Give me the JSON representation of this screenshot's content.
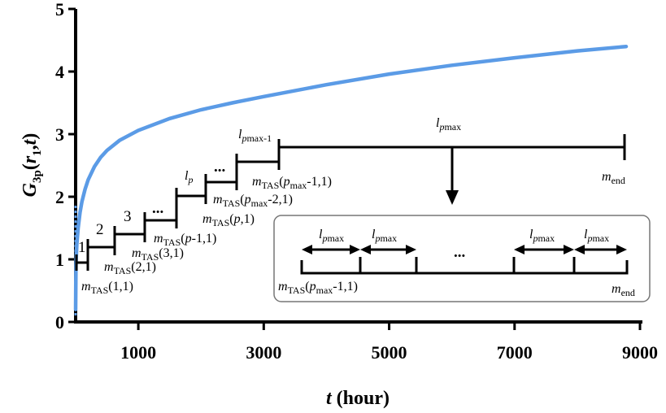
{
  "chart_data": {
    "type": "line",
    "title": "",
    "ylabel": {
      "main": "G",
      "sub1": "3p",
      "open": "(",
      "r": "r",
      "rsub": "1",
      "comma": ",",
      "t": "t",
      "close": ")"
    },
    "xlabel": {
      "var": "t",
      "unit": " (hour)"
    },
    "xlim": [
      0,
      9000
    ],
    "ylim": [
      0,
      5
    ],
    "x_ticks": [
      1000,
      3000,
      5000,
      7000,
      9000
    ],
    "x_tick_labels": [
      "1000",
      "3000",
      "5000",
      "7000",
      "9000"
    ],
    "y_ticks": [
      0,
      1,
      2,
      3,
      4,
      5
    ],
    "y_tick_labels": [
      "0",
      "1",
      "2",
      "3",
      "4",
      "5"
    ],
    "grid": false,
    "series": [
      {
        "color": "#5b9be6",
        "x": [
          0,
          5,
          10,
          20,
          40,
          70,
          100,
          150,
          200,
          300,
          400,
          500,
          700,
          1000,
          1500,
          2000,
          2500,
          3000,
          4000,
          5000,
          6000,
          7000,
          8000,
          8780
        ],
        "y": [
          0.2,
          0.9,
          1.05,
          1.25,
          1.5,
          1.75,
          1.92,
          2.12,
          2.27,
          2.48,
          2.63,
          2.74,
          2.9,
          3.06,
          3.25,
          3.39,
          3.5,
          3.6,
          3.79,
          3.96,
          4.1,
          4.22,
          4.33,
          4.4
        ]
      }
    ],
    "annotations": {
      "stage_labels": {
        "s1": "1",
        "s2": "2",
        "s3": "3",
        "dots": "...",
        "lp": "l",
        "lp_sub": "p",
        "lpmax1": "l",
        "lpmax1_sub": "p",
        "lpmax1_sub2": "max",
        "lpmax1_suffix": "-1",
        "lpmax": "l",
        "lpmax_sub": "p",
        "lpmax_sub2": "max"
      },
      "m_labels": {
        "m": "m",
        "tas": "TAS",
        "a11": "(1,1)",
        "a21": "(2,1)",
        "a31": "(3,1)",
        "ap1_pre": "(",
        "ap1_p": "p",
        "ap1_post": "-1,1)",
        "apc_pre": "(",
        "apc_p": "p",
        "apc_post": ",1)",
        "apm2_pre": "(",
        "apm2_p": "p",
        "apm2_max": "max",
        "apm2_post": "-2,1)",
        "apm1_pre": "(",
        "apm1_p": "p",
        "apm1_max": "max",
        "apm1_post": "-1,1)",
        "end": "end"
      },
      "inset": {
        "dots": "...",
        "l": "l",
        "p": "p",
        "max": "max"
      }
    }
  }
}
